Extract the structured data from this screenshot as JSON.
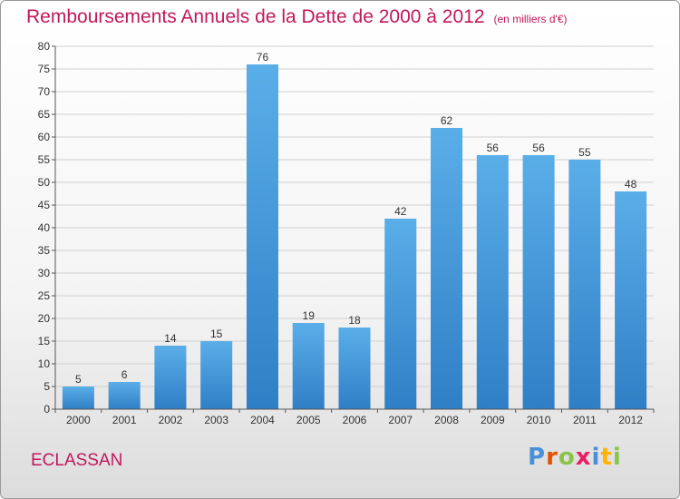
{
  "header": {
    "title": "Remboursements Annuels de la Dette de 2000 à 2012",
    "subtitle": "(en milliers d'€)"
  },
  "footer": {
    "commune": "ECLASSAN",
    "logo": "Proxiti"
  },
  "colors": {
    "title": "#c2185b",
    "bar_top": "#5aaee8",
    "bar_bottom": "#2f7fc6",
    "grid": "#d0d0d0",
    "axis": "#555555"
  },
  "chart_data": {
    "type": "bar",
    "title": "Remboursements Annuels de la Dette de 2000 à 2012",
    "subtitle": "(en milliers d'€)",
    "xlabel": "",
    "ylabel": "",
    "categories": [
      "2000",
      "2001",
      "2002",
      "2003",
      "2004",
      "2005",
      "2006",
      "2007",
      "2008",
      "2009",
      "2010",
      "2011",
      "2012"
    ],
    "values": [
      5,
      6,
      14,
      15,
      76,
      19,
      18,
      42,
      62,
      56,
      56,
      55,
      48
    ],
    "ylim": [
      0,
      80
    ],
    "yticks": [
      0,
      5,
      10,
      15,
      20,
      25,
      30,
      35,
      40,
      45,
      50,
      55,
      60,
      65,
      70,
      75,
      80
    ],
    "grid": true,
    "legend": "none"
  }
}
